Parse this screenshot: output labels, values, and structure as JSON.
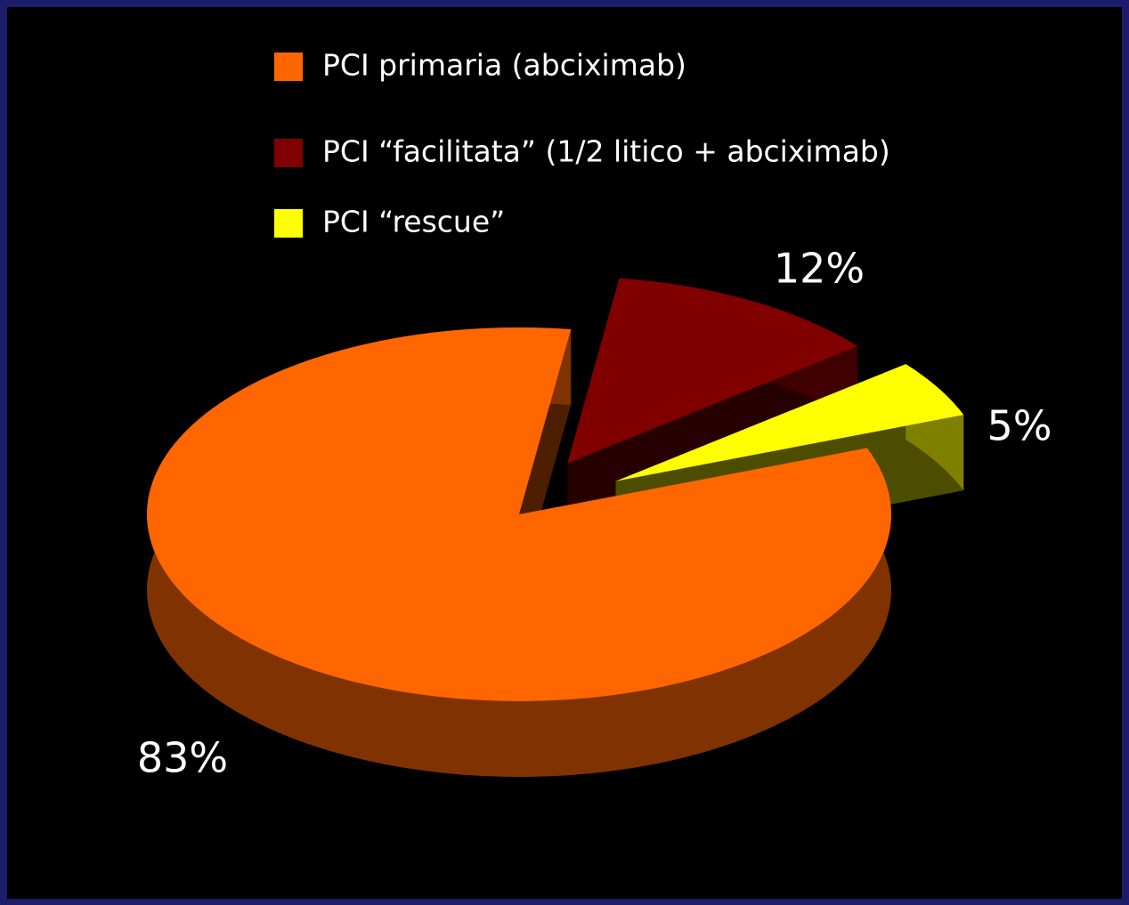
{
  "chart_data": {
    "type": "pie",
    "categories": [
      "PCI primaria (abciximab)",
      "PCI “facilitata” (1/2 litico + abciximab)",
      "PCI “rescue”"
    ],
    "values": [
      83,
      12,
      5
    ],
    "value_labels": [
      "83%",
      "12%",
      "5%"
    ],
    "colors": [
      "#ff6600",
      "#800000",
      "#ffff00"
    ]
  }
}
